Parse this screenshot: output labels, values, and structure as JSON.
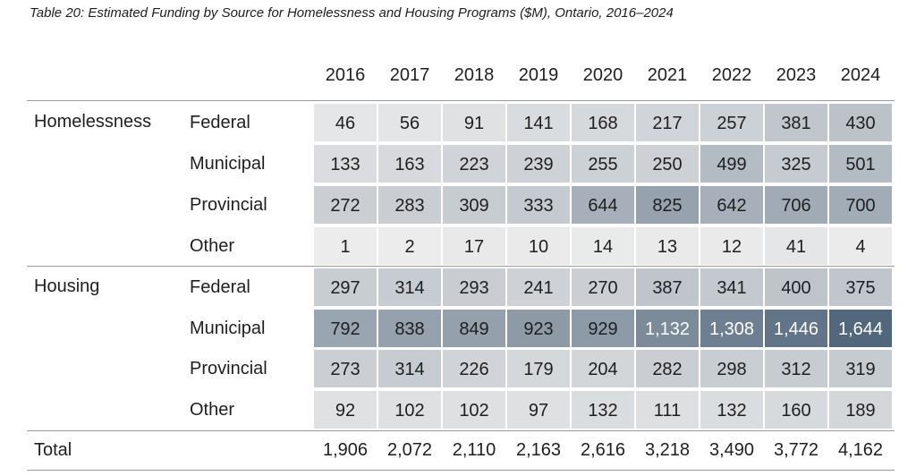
{
  "title": "Table 20: Estimated Funding by Source for Homelessness and Housing Programs ($M), Ontario, 2016–2024",
  "chart_data": {
    "type": "table",
    "title": "Table 20: Estimated Funding by Source for Homelessness and Housing Programs ($M), Ontario, 2016–2024",
    "columns": [
      "2016",
      "2017",
      "2018",
      "2019",
      "2020",
      "2021",
      "2022",
      "2023",
      "2024"
    ],
    "groups": [
      {
        "name": "Homelessness",
        "rows": [
          {
            "source": "Federal",
            "values": [
              46,
              56,
              91,
              141,
              168,
              217,
              257,
              381,
              430
            ]
          },
          {
            "source": "Municipal",
            "values": [
              133,
              163,
              223,
              239,
              255,
              250,
              499,
              325,
              501
            ]
          },
          {
            "source": "Provincial",
            "values": [
              272,
              283,
              309,
              333,
              644,
              825,
              642,
              706,
              700
            ]
          },
          {
            "source": "Other",
            "values": [
              1,
              2,
              17,
              10,
              14,
              13,
              12,
              41,
              4
            ]
          }
        ]
      },
      {
        "name": "Housing",
        "rows": [
          {
            "source": "Federal",
            "values": [
              297,
              314,
              293,
              241,
              270,
              387,
              341,
              400,
              375
            ]
          },
          {
            "source": "Municipal",
            "values": [
              792,
              838,
              849,
              923,
              929,
              1132,
              1308,
              1446,
              1644
            ]
          },
          {
            "source": "Provincial",
            "values": [
              273,
              314,
              226,
              179,
              204,
              282,
              298,
              312,
              319
            ]
          },
          {
            "source": "Other",
            "values": [
              92,
              102,
              102,
              97,
              132,
              111,
              132,
              160,
              189
            ]
          }
        ]
      }
    ],
    "total_label": "Total",
    "totals": [
      1906,
      2072,
      2110,
      2163,
      2616,
      3218,
      3490,
      3772,
      4162
    ],
    "heatmap": {
      "low_color": "#ececec",
      "high_color": "#52677c",
      "text_dark": "#1f1f1f",
      "text_light": "#ffffff"
    }
  }
}
